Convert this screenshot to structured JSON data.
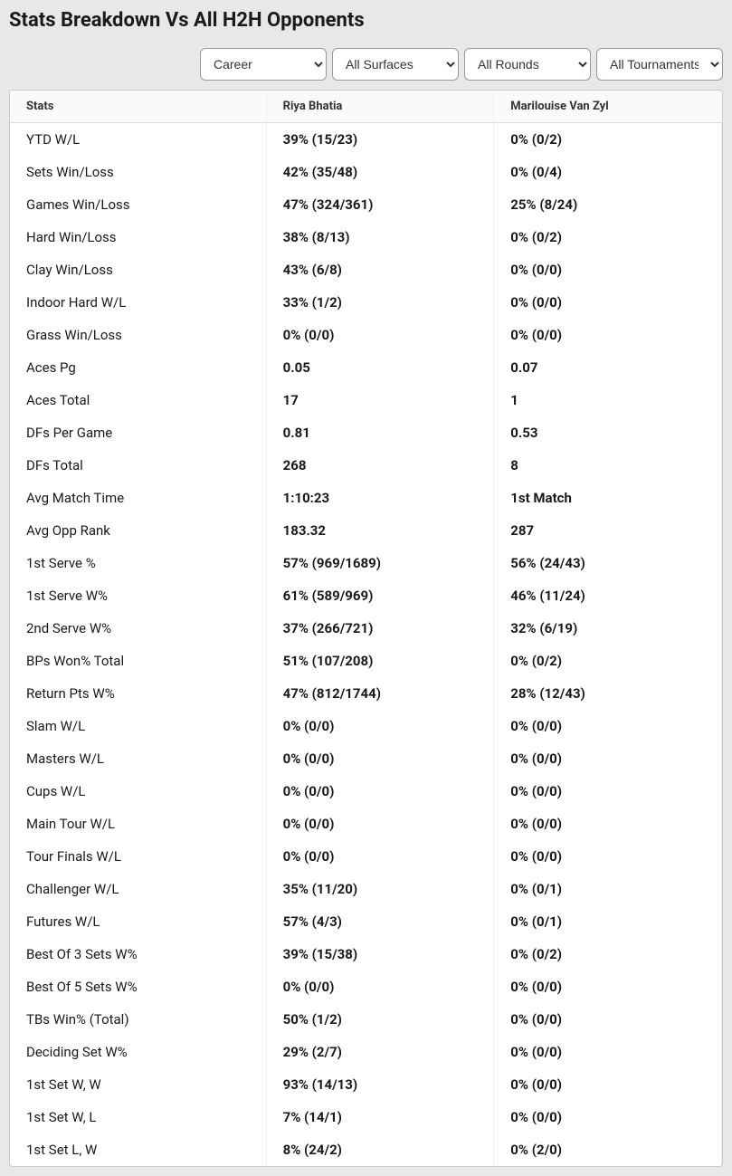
{
  "title": "Stats Breakdown Vs All H2H Opponents",
  "filters": {
    "career": {
      "selected": "Career",
      "options": [
        "Career"
      ]
    },
    "surface": {
      "selected": "All Surfaces",
      "options": [
        "All Surfaces"
      ]
    },
    "round": {
      "selected": "All Rounds",
      "options": [
        "All Rounds"
      ]
    },
    "tournament": {
      "selected": "All Tournaments",
      "options": [
        "All Tournaments"
      ]
    }
  },
  "table": {
    "columns": [
      "Stats",
      "Riya Bhatia",
      "Marilouise Van Zyl"
    ],
    "rows": [
      [
        "YTD W/L",
        "39% (15/23)",
        "0% (0/2)"
      ],
      [
        "Sets Win/Loss",
        "42% (35/48)",
        "0% (0/4)"
      ],
      [
        "Games Win/Loss",
        "47% (324/361)",
        "25% (8/24)"
      ],
      [
        "Hard Win/Loss",
        "38% (8/13)",
        "0% (0/2)"
      ],
      [
        "Clay Win/Loss",
        "43% (6/8)",
        "0% (0/0)"
      ],
      [
        "Indoor Hard W/L",
        "33% (1/2)",
        "0% (0/0)"
      ],
      [
        "Grass Win/Loss",
        "0% (0/0)",
        "0% (0/0)"
      ],
      [
        "Aces Pg",
        "0.05",
        "0.07"
      ],
      [
        "Aces Total",
        "17",
        "1"
      ],
      [
        "DFs Per Game",
        "0.81",
        "0.53"
      ],
      [
        "DFs Total",
        "268",
        "8"
      ],
      [
        "Avg Match Time",
        "1:10:23",
        "1st Match"
      ],
      [
        "Avg Opp Rank",
        "183.32",
        "287"
      ],
      [
        "1st Serve %",
        "57% (969/1689)",
        "56% (24/43)"
      ],
      [
        "1st Serve W%",
        "61% (589/969)",
        "46% (11/24)"
      ],
      [
        "2nd Serve W%",
        "37% (266/721)",
        "32% (6/19)"
      ],
      [
        "BPs Won% Total",
        "51% (107/208)",
        "0% (0/2)"
      ],
      [
        "Return Pts W%",
        "47% (812/1744)",
        "28% (12/43)"
      ],
      [
        "Slam W/L",
        "0% (0/0)",
        "0% (0/0)"
      ],
      [
        "Masters W/L",
        "0% (0/0)",
        "0% (0/0)"
      ],
      [
        "Cups W/L",
        "0% (0/0)",
        "0% (0/0)"
      ],
      [
        "Main Tour W/L",
        "0% (0/0)",
        "0% (0/0)"
      ],
      [
        "Tour Finals W/L",
        "0% (0/0)",
        "0% (0/0)"
      ],
      [
        "Challenger W/L",
        "35% (11/20)",
        "0% (0/1)"
      ],
      [
        "Futures W/L",
        "57% (4/3)",
        "0% (0/1)"
      ],
      [
        "Best Of 3 Sets W%",
        "39% (15/38)",
        "0% (0/2)"
      ],
      [
        "Best Of 5 Sets W%",
        "0% (0/0)",
        "0% (0/0)"
      ],
      [
        "TBs Win% (Total)",
        "50% (1/2)",
        "0% (0/0)"
      ],
      [
        "Deciding Set W%",
        "29% (2/7)",
        "0% (0/0)"
      ],
      [
        "1st Set W, W",
        "93% (14/13)",
        "0% (0/0)"
      ],
      [
        "1st Set W, L",
        "7% (14/1)",
        "0% (0/0)"
      ],
      [
        "1st Set L, W",
        "8% (24/2)",
        "0% (2/0)"
      ]
    ]
  }
}
